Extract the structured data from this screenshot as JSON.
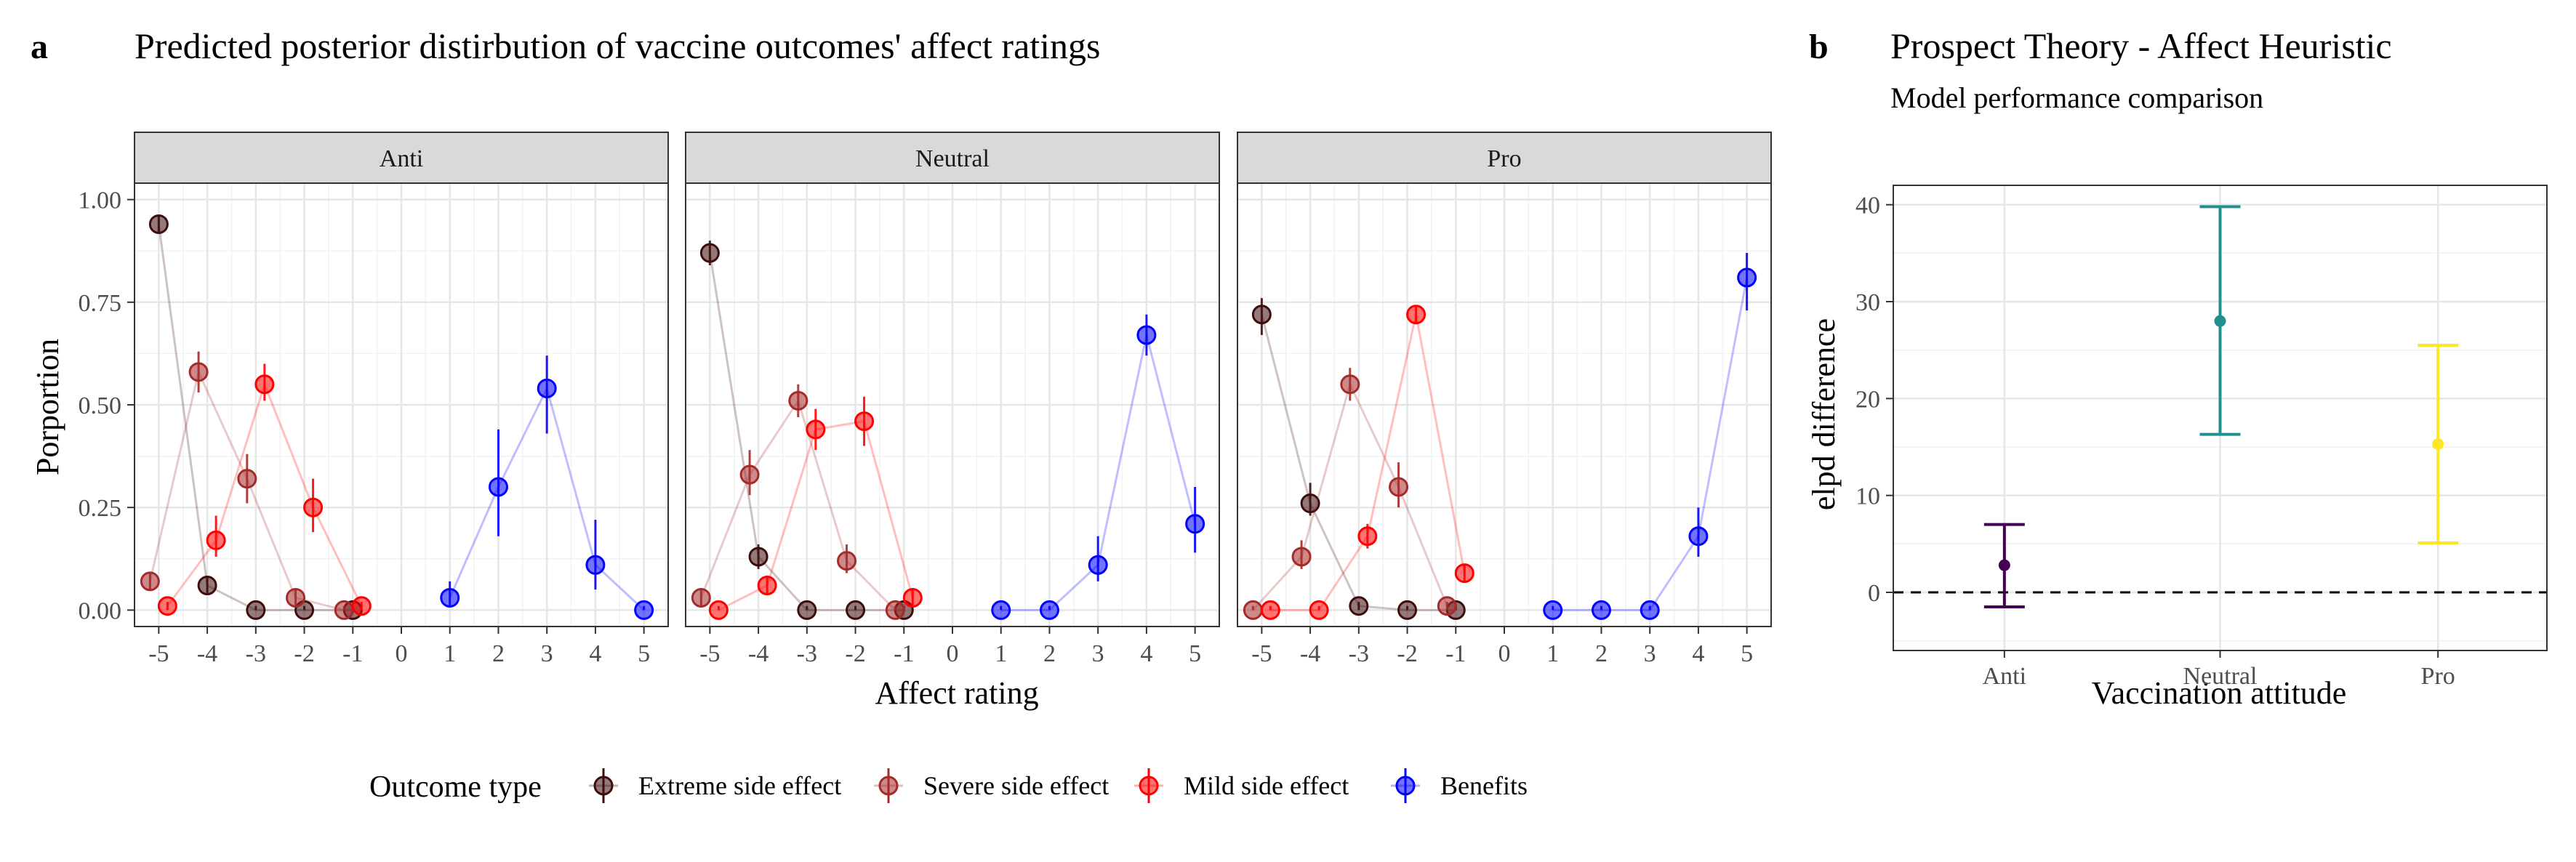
{
  "panels": {
    "a": {
      "letter": "a",
      "title": "Predicted posterior distirbution of vaccine outcomes' affect ratings"
    },
    "b": {
      "letter": "b",
      "title": "Prospect Theory - Affect Heuristic",
      "subtitle": "Model performance comparison"
    }
  },
  "legend": {
    "title": "Outcome type",
    "items": [
      {
        "label": "Extreme side effect",
        "color": "#3d0d0d"
      },
      {
        "label": "Severe side effect",
        "color": "#a52a2a"
      },
      {
        "label": "Mild side effect",
        "color": "#ff0000"
      },
      {
        "label": "Benefits",
        "color": "#0000ff"
      }
    ]
  },
  "chart_data": [
    {
      "type": "line",
      "title": "Predicted posterior distirbution of vaccine outcomes' affect ratings",
      "xlabel": "Affect rating",
      "ylabel": "Porportion",
      "xlim": [
        -5.5,
        5.5
      ],
      "ylim": [
        -0.04,
        1.04
      ],
      "x_ticks": [
        "-5",
        "-4",
        "-3",
        "-2",
        "-1",
        "0",
        "1",
        "2",
        "3",
        "4",
        "5"
      ],
      "y_ticks": [
        "0.00",
        "0.25",
        "0.50",
        "0.75",
        "1.00"
      ],
      "grid": true,
      "facets": [
        {
          "name": "Anti",
          "series": [
            {
              "name": "Extreme side effect",
              "color": "#3d0d0d",
              "x": [
                -5,
                -4,
                -3,
                -2,
                -1
              ],
              "y": [
                0.94,
                0.06,
                0.0,
                0.0,
                0.0
              ],
              "lo": [
                0.92,
                0.04,
                0.0,
                0.0,
                0.0
              ],
              "hi": [
                0.96,
                0.08,
                0.01,
                0.01,
                0.01
              ]
            },
            {
              "name": "Severe side effect",
              "color": "#a52a2a",
              "x": [
                -5,
                -4,
                -3,
                -2,
                -1
              ],
              "y": [
                0.07,
                0.58,
                0.32,
                0.03,
                0.0
              ],
              "lo": [
                0.05,
                0.53,
                0.26,
                0.01,
                0.0
              ],
              "hi": [
                0.09,
                0.63,
                0.38,
                0.05,
                0.01
              ]
            },
            {
              "name": "Mild side effect",
              "color": "#ff0000",
              "x": [
                -5,
                -4,
                -3,
                -2,
                -1
              ],
              "y": [
                0.01,
                0.17,
                0.55,
                0.25,
                0.01
              ],
              "lo": [
                0.0,
                0.13,
                0.51,
                0.19,
                0.0
              ],
              "hi": [
                0.02,
                0.23,
                0.6,
                0.32,
                0.02
              ]
            },
            {
              "name": "Benefits",
              "color": "#0000ff",
              "x": [
                1,
                2,
                3,
                4,
                5
              ],
              "y": [
                0.03,
                0.3,
                0.54,
                0.11,
                0.0
              ],
              "lo": [
                0.01,
                0.18,
                0.43,
                0.05,
                0.0
              ],
              "hi": [
                0.07,
                0.44,
                0.62,
                0.22,
                0.01
              ]
            }
          ]
        },
        {
          "name": "Neutral",
          "series": [
            {
              "name": "Extreme side effect",
              "color": "#3d0d0d",
              "x": [
                -5,
                -4,
                -3,
                -2,
                -1
              ],
              "y": [
                0.87,
                0.13,
                0.0,
                0.0,
                0.0
              ],
              "lo": [
                0.84,
                0.1,
                0.0,
                0.0,
                0.0
              ],
              "hi": [
                0.9,
                0.16,
                0.01,
                0.01,
                0.01
              ]
            },
            {
              "name": "Severe side effect",
              "color": "#a52a2a",
              "x": [
                -5,
                -4,
                -3,
                -2,
                -1
              ],
              "y": [
                0.03,
                0.33,
                0.51,
                0.12,
                0.0
              ],
              "lo": [
                0.01,
                0.28,
                0.47,
                0.09,
                0.0
              ],
              "hi": [
                0.05,
                0.39,
                0.55,
                0.16,
                0.01
              ]
            },
            {
              "name": "Mild side effect",
              "color": "#ff0000",
              "x": [
                -5,
                -4,
                -3,
                -2,
                -1
              ],
              "y": [
                0.0,
                0.06,
                0.44,
                0.46,
                0.03
              ],
              "lo": [
                0.0,
                0.04,
                0.39,
                0.4,
                0.01
              ],
              "hi": [
                0.01,
                0.08,
                0.49,
                0.52,
                0.05
              ]
            },
            {
              "name": "Benefits",
              "color": "#0000ff",
              "x": [
                1,
                2,
                3,
                4,
                5
              ],
              "y": [
                0.0,
                0.0,
                0.11,
                0.67,
                0.21
              ],
              "lo": [
                0.0,
                0.0,
                0.07,
                0.62,
                0.14
              ],
              "hi": [
                0.01,
                0.01,
                0.18,
                0.72,
                0.3
              ]
            }
          ]
        },
        {
          "name": "Pro",
          "series": [
            {
              "name": "Extreme side effect",
              "color": "#3d0d0d",
              "x": [
                -5,
                -4,
                -3,
                -2,
                -1
              ],
              "y": [
                0.72,
                0.26,
                0.01,
                0.0,
                0.0
              ],
              "lo": [
                0.67,
                0.23,
                0.0,
                0.0,
                0.0
              ],
              "hi": [
                0.76,
                0.31,
                0.02,
                0.01,
                0.01
              ]
            },
            {
              "name": "Severe side effect",
              "color": "#a52a2a",
              "x": [
                -5,
                -4,
                -3,
                -2,
                -1
              ],
              "y": [
                0.0,
                0.13,
                0.55,
                0.3,
                0.01
              ],
              "lo": [
                0.0,
                0.1,
                0.51,
                0.25,
                0.0
              ],
              "hi": [
                0.01,
                0.17,
                0.59,
                0.36,
                0.02
              ]
            },
            {
              "name": "Mild side effect",
              "color": "#ff0000",
              "x": [
                -5,
                -4,
                -3,
                -2,
                -1
              ],
              "y": [
                0.0,
                0.0,
                0.18,
                0.72,
                0.09
              ],
              "lo": [
                0.0,
                0.0,
                0.15,
                0.7,
                0.07
              ],
              "hi": [
                0.01,
                0.01,
                0.21,
                0.74,
                0.11
              ]
            },
            {
              "name": "Benefits",
              "color": "#0000ff",
              "x": [
                1,
                2,
                3,
                4,
                5
              ],
              "y": [
                0.0,
                0.0,
                0.0,
                0.18,
                0.81
              ],
              "lo": [
                0.0,
                0.0,
                0.0,
                0.13,
                0.73
              ],
              "hi": [
                0.01,
                0.01,
                0.01,
                0.25,
                0.87
              ]
            }
          ]
        }
      ]
    },
    {
      "type": "scatter",
      "title": "Prospect Theory - Affect Heuristic",
      "subtitle": "Model performance comparison",
      "xlabel": "Vaccination attitude",
      "ylabel": "elpd difference",
      "categories": [
        "Anti",
        "Neutral",
        "Pro"
      ],
      "y": [
        2.8,
        28.0,
        15.3
      ],
      "lo": [
        -1.5,
        16.3,
        5.1
      ],
      "hi": [
        7.0,
        39.8,
        25.5
      ],
      "colors": [
        "#440154",
        "#21908d",
        "#fde725"
      ],
      "ylim": [
        -6,
        42
      ],
      "y_ticks": [
        "0",
        "10",
        "20",
        "30",
        "40"
      ],
      "reference_line": 0,
      "grid": true
    }
  ]
}
